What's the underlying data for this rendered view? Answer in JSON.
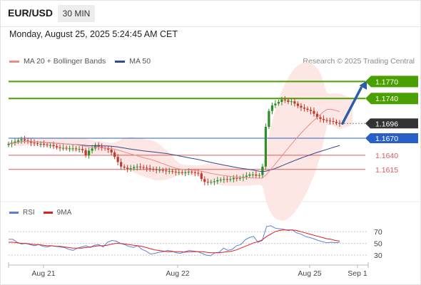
{
  "header": {
    "symbol": "EUR/USD",
    "timeframe": "30 MIN"
  },
  "datetime": "Monday, August 25, 2025 5:24:45 AM CET",
  "legend": {
    "ma20_label": "MA 20 + Bollinger Bands",
    "ma50_label": "MA 50",
    "credit": "Research © 2025 Trading Central"
  },
  "rsi_legend": {
    "rsi_label": "RSI",
    "ma9_label": "9MA"
  },
  "colors": {
    "up": "#2a8f2a",
    "down": "#c0392b",
    "ma20": "#f08a8a",
    "bollinger_fill": "#fde3e1",
    "ma50": "#2f4a8f",
    "resistance": "#4aa000",
    "support_blue": "#2860c8",
    "support_red": "#e05a5a",
    "current_price_bg": "#333333",
    "arrow": "#2b5da8",
    "rsi": "#5b7fd8",
    "rsi_ma": "#e02020"
  },
  "chart_data": [
    {
      "type": "candlestick",
      "title": "EUR/USD 30 MIN",
      "x_labels": [
        "Aug 21",
        "Aug 22",
        "Aug 25",
        "Sep 1"
      ],
      "ylim": [
        1.1562,
        1.1788
      ],
      "levels": [
        {
          "value": 1.177,
          "label": "1.1770",
          "kind": "resistance"
        },
        {
          "value": 1.174,
          "label": "1.1740",
          "kind": "resistance"
        },
        {
          "value": 1.1696,
          "label": "1.1696",
          "kind": "current"
        },
        {
          "value": 1.167,
          "label": "1.1670",
          "kind": "pivot"
        },
        {
          "value": 1.164,
          "label": "1.1640",
          "kind": "support"
        },
        {
          "value": 1.1615,
          "label": "1.1615",
          "kind": "support"
        }
      ],
      "projection": {
        "from": 1.1696,
        "to": 1.177,
        "direction": "up"
      },
      "closes": [
        1.166,
        1.1662,
        1.1664,
        1.1666,
        1.1668,
        1.1666,
        1.1664,
        1.1662,
        1.1661,
        1.166,
        1.166,
        1.1659,
        1.1658,
        1.1658,
        1.1656,
        1.1654,
        1.1653,
        1.1653,
        1.1652,
        1.1652,
        1.1652,
        1.1651,
        1.1651,
        1.1649,
        1.164,
        1.1648,
        1.1652,
        1.1658,
        1.1655,
        1.1653,
        1.1652,
        1.165,
        1.1645,
        1.1637,
        1.1628,
        1.162,
        1.1618,
        1.1616,
        1.1617,
        1.1619,
        1.162,
        1.1619,
        1.1618,
        1.1617,
        1.1616,
        1.1615,
        1.1614,
        1.1614,
        1.1613,
        1.1612,
        1.1612,
        1.1611,
        1.161,
        1.161,
        1.1609,
        1.161,
        1.1611,
        1.161,
        1.1609,
        1.1608,
        1.1598,
        1.1593,
        1.1592,
        1.1593,
        1.1594,
        1.1596,
        1.1597,
        1.1598,
        1.1597,
        1.1598,
        1.16,
        1.1599,
        1.16,
        1.1602,
        1.1604,
        1.1606,
        1.1606,
        1.1604,
        1.1605,
        1.162,
        1.169,
        1.1718,
        1.1728,
        1.1731,
        1.1734,
        1.1738,
        1.1737,
        1.1734,
        1.1735,
        1.1731,
        1.1727,
        1.1724,
        1.1722,
        1.172,
        1.1718,
        1.1713,
        1.1707,
        1.1704,
        1.1702,
        1.1701,
        1.17,
        1.1699,
        1.1697,
        1.1696
      ],
      "ma20_end": 1.1712,
      "ma50_end": 1.1665
    },
    {
      "type": "line",
      "title": "RSI",
      "ylim": [
        18,
        86
      ],
      "ticks": [
        70,
        50,
        30
      ],
      "series": [
        {
          "name": "RSI",
          "values": [
            57,
            57,
            52,
            49,
            50,
            48,
            46,
            48,
            45,
            44,
            46,
            45,
            44,
            43,
            40,
            38,
            42,
            44,
            46,
            43,
            47,
            48,
            44,
            52,
            55,
            54,
            50,
            48,
            45,
            43,
            46,
            40,
            37,
            32,
            33,
            35,
            36,
            38,
            37,
            34,
            33,
            36,
            38,
            37,
            36,
            33,
            30,
            29,
            34,
            35,
            42,
            38,
            40,
            46,
            48,
            56,
            60,
            62,
            52,
            55,
            79,
            80,
            76,
            75,
            74,
            72,
            73,
            68,
            66,
            62,
            60,
            58,
            55,
            53,
            51,
            52,
            51,
            52
          ]
        },
        {
          "name": "9MA",
          "values": [
            52,
            52,
            51,
            50,
            50,
            49,
            48,
            48,
            47,
            46,
            46,
            45,
            45,
            44,
            43,
            42,
            42,
            42,
            43,
            44,
            45,
            46,
            46,
            47,
            49,
            50,
            50,
            49,
            48,
            47,
            46,
            45,
            43,
            41,
            39,
            38,
            37,
            36,
            36,
            36,
            36,
            35,
            36,
            36,
            36,
            36,
            35,
            34,
            34,
            34,
            35,
            36,
            37,
            39,
            42,
            45,
            48,
            51,
            53,
            56,
            62,
            66,
            70,
            72,
            73,
            73,
            73,
            72,
            70,
            68,
            66,
            64,
            62,
            60,
            58,
            57,
            55,
            54
          ]
        }
      ]
    }
  ]
}
